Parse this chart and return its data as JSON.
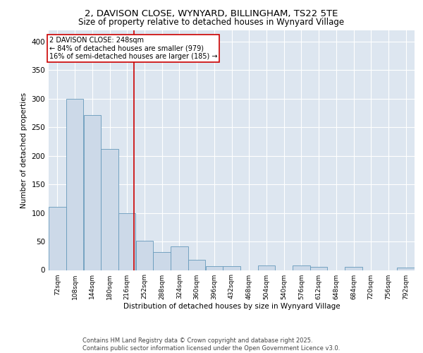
{
  "title_line1": "2, DAVISON CLOSE, WYNYARD, BILLINGHAM, TS22 5TE",
  "title_line2": "Size of property relative to detached houses in Wynyard Village",
  "xlabel": "Distribution of detached houses by size in Wynyard Village",
  "ylabel": "Number of detached properties",
  "footer_line1": "Contains HM Land Registry data © Crown copyright and database right 2025.",
  "footer_line2": "Contains public sector information licensed under the Open Government Licence v3.0.",
  "bar_color": "#ccd9e8",
  "bar_edge_color": "#6699bb",
  "bg_color": "#dde6f0",
  "grid_color": "#ffffff",
  "annotation_box_color": "#cc0000",
  "vline_color": "#cc0000",
  "vline_x": 248,
  "annotation_text": "2 DAVISON CLOSE: 248sqm\n← 84% of detached houses are smaller (979)\n16% of semi-detached houses are larger (185) →",
  "categories": [
    "72sqm",
    "108sqm",
    "144sqm",
    "180sqm",
    "216sqm",
    "252sqm",
    "288sqm",
    "324sqm",
    "360sqm",
    "396sqm",
    "432sqm",
    "468sqm",
    "504sqm",
    "540sqm",
    "576sqm",
    "612sqm",
    "648sqm",
    "684sqm",
    "720sqm",
    "756sqm",
    "792sqm"
  ],
  "bin_edges": [
    72,
    108,
    144,
    180,
    216,
    252,
    288,
    324,
    360,
    396,
    432,
    468,
    504,
    540,
    576,
    612,
    648,
    684,
    720,
    756,
    792
  ],
  "bin_width": 36,
  "values": [
    110,
    299,
    271,
    212,
    100,
    51,
    31,
    41,
    18,
    7,
    7,
    0,
    8,
    0,
    8,
    5,
    0,
    5,
    0,
    0,
    4
  ],
  "ylim": [
    0,
    420
  ],
  "yticks": [
    0,
    50,
    100,
    150,
    200,
    250,
    300,
    350,
    400
  ]
}
